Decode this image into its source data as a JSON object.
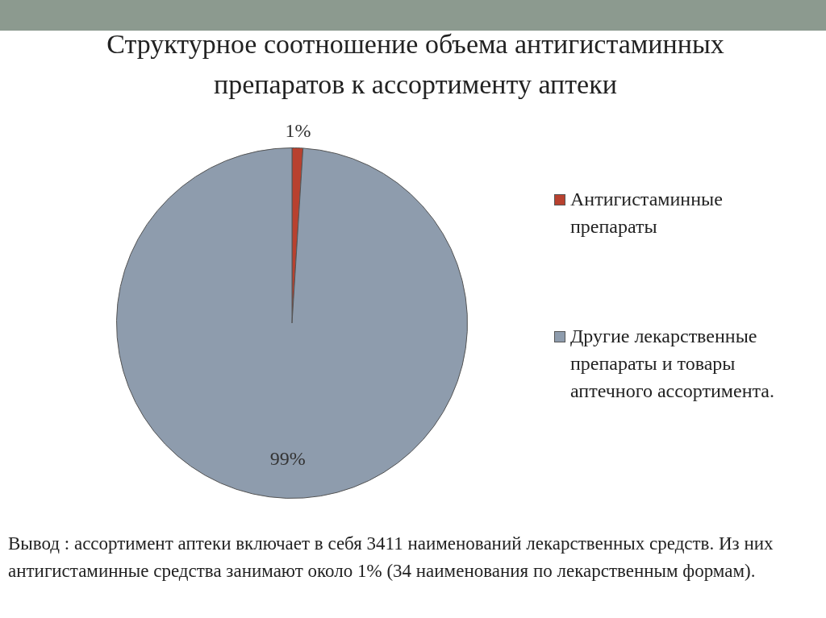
{
  "chart_data": {
    "type": "pie",
    "title": "Структурное соотношение объема антигистаминных препаратов к ассортименту аптеки",
    "categories": [
      "Антигистаминные препараты",
      "Другие лекарственные препараты и товары аптечного ассортимента."
    ],
    "values": [
      1,
      99
    ],
    "value_labels": [
      "1%",
      "99%"
    ],
    "colors": [
      "#b8412f",
      "#8e9cad"
    ],
    "legend": "right",
    "annotations": [
      "Вывод : ассортимент аптеки включает в себя 3411 наименований лекарственных средств. Из них антигистаминные средства занимают около 1% (34 наименования  по лекарственным формам)."
    ]
  }
}
